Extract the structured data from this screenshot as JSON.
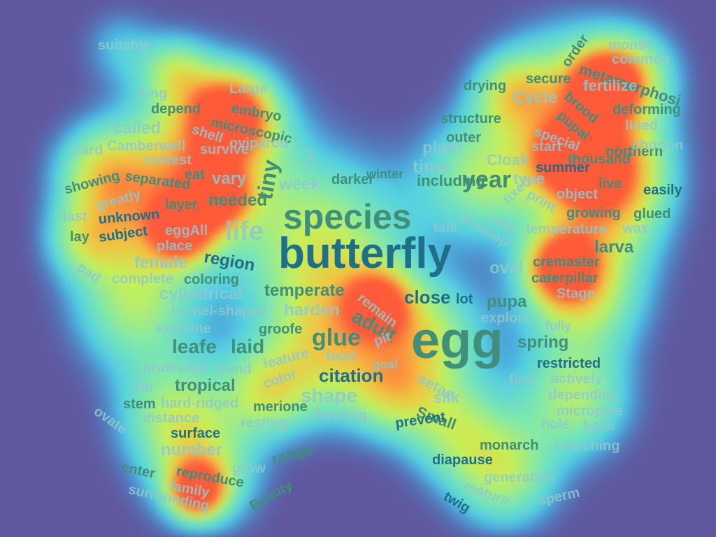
{
  "palette": {
    "background": "#5f5aa0",
    "heat_low": "#45c8f5",
    "heat_mid": "#b8f070",
    "heat_high": "#ff5a3a",
    "text_dark": "#1f6e8a",
    "text_mid": "#3f8f7a",
    "text_light": "#8ec9ce"
  },
  "words": [
    {
      "id": "butterfly",
      "text": "butterfly",
      "color": "text_dark",
      "heat": 0.15
    },
    {
      "id": "species",
      "text": "species",
      "color": "text_mid",
      "heat": 0.35
    },
    {
      "id": "egg",
      "text": "egg",
      "color": "text_mid",
      "heat": 0.5
    },
    {
      "id": "life",
      "text": "life",
      "color": "text_light",
      "heat": 0.2
    },
    {
      "id": "tiny",
      "text": "tiny",
      "color": "text_mid",
      "heat": 0.75
    },
    {
      "id": "year",
      "text": "year",
      "color": "text_mid",
      "heat": 0.4
    },
    {
      "id": "glue",
      "text": "glue",
      "color": "text_mid",
      "heat": 0.55
    },
    {
      "id": "adult",
      "text": "adult",
      "color": "text_mid",
      "heat": 0.7
    },
    {
      "id": "leafe",
      "text": "leafe",
      "color": "text_mid",
      "heat": 0.7
    },
    {
      "id": "laid",
      "text": "laid",
      "color": "text_mid",
      "heat": 0.6
    },
    {
      "id": "citation",
      "text": "citation",
      "color": "text_dark",
      "heat": 0.5
    },
    {
      "id": "shape",
      "text": "shape",
      "color": "text_light",
      "heat": 0.45
    },
    {
      "id": "region",
      "text": "region",
      "color": "text_dark",
      "heat": 0.55
    },
    {
      "id": "needed",
      "text": "needed",
      "color": "text_mid",
      "heat": 0.85
    },
    {
      "id": "vary",
      "text": "vary",
      "color": "text_light",
      "heat": 0.5
    },
    {
      "id": "week",
      "text": "week",
      "color": "text_light",
      "heat": 0.45
    },
    {
      "id": "darker",
      "text": "darker",
      "color": "text_mid",
      "heat": 0.45
    },
    {
      "id": "winter",
      "text": "winter",
      "color": "text_mid",
      "heat": 0.5
    },
    {
      "id": "including",
      "text": "including",
      "color": "text_mid",
      "heat": 0.5
    },
    {
      "id": "time",
      "text": "time",
      "color": "text_light",
      "heat": 0.5
    },
    {
      "id": "plant",
      "text": "plant",
      "color": "text_light",
      "heat": 0.5
    },
    {
      "id": "type",
      "text": "type",
      "color": "text_light",
      "heat": 0.55
    },
    {
      "id": "cloak",
      "text": "Cloak",
      "color": "text_light",
      "heat": 0.5
    },
    {
      "id": "outer",
      "text": "outer",
      "color": "text_mid",
      "heat": 0.55
    },
    {
      "id": "structure",
      "text": "structure",
      "color": "text_mid",
      "heat": 0.5
    },
    {
      "id": "drying",
      "text": "drying",
      "color": "text_mid",
      "heat": 0.3
    },
    {
      "id": "cycle",
      "text": "Cycle",
      "color": "text_light",
      "heat": 0.35
    },
    {
      "id": "secure",
      "text": "secure",
      "color": "text_mid",
      "heat": 0.4
    },
    {
      "id": "order",
      "text": "order",
      "color": "text_mid",
      "heat": 0.6
    },
    {
      "id": "month",
      "text": "month",
      "color": "text_light",
      "heat": 0.3
    },
    {
      "id": "common",
      "text": "common",
      "color": "text_light",
      "heat": 0.6
    },
    {
      "id": "metamorphosi",
      "text": "metamorphosi",
      "color": "text_mid",
      "heat": 0.75
    },
    {
      "id": "fertilize",
      "text": "fertilize",
      "color": "text_light",
      "heat": 0.85
    },
    {
      "id": "brood",
      "text": "brood",
      "color": "text_mid",
      "heat": 0.75
    },
    {
      "id": "deforming",
      "text": "deforming",
      "color": "text_mid",
      "heat": 0.6
    },
    {
      "id": "pupal",
      "text": "pupal",
      "color": "text_mid",
      "heat": 0.75
    },
    {
      "id": "lined",
      "text": "lined",
      "color": "text_light",
      "heat": 0.55
    },
    {
      "id": "special",
      "text": "special",
      "color": "text_light",
      "heat": 0.55
    },
    {
      "id": "start",
      "text": "start",
      "color": "text_light",
      "heat": 0.5
    },
    {
      "id": "northern",
      "text": "northern",
      "color": "text_mid",
      "heat": 0.55
    },
    {
      "id": "chorion",
      "text": "chorion",
      "color": "text_light",
      "heat": 0.45
    },
    {
      "id": "thousand",
      "text": "thousand",
      "color": "text_mid",
      "heat": 0.9
    },
    {
      "id": "summer",
      "text": "summer",
      "color": "text_dark",
      "heat": 0.6
    },
    {
      "id": "live",
      "text": "live",
      "color": "text_mid",
      "heat": 0.7
    },
    {
      "id": "object",
      "text": "object",
      "color": "text_light",
      "heat": 0.5
    },
    {
      "id": "easily",
      "text": "easily",
      "color": "text_dark",
      "heat": 0.4
    },
    {
      "id": "print",
      "text": "print",
      "color": "text_light",
      "heat": 0.6
    },
    {
      "id": "growing",
      "text": "growing",
      "color": "text_mid",
      "heat": 0.85
    },
    {
      "id": "glued",
      "text": "glued",
      "color": "text_mid",
      "heat": 0.6
    },
    {
      "id": "fixed",
      "text": "fixed",
      "color": "text_light",
      "heat": 0.65
    },
    {
      "id": "size",
      "text": "size",
      "color": "text_light",
      "heat": 0.85
    },
    {
      "id": "develop",
      "text": "develop",
      "color": "text_light",
      "heat": 0.55
    },
    {
      "id": "temperature",
      "text": "temperature",
      "color": "text_light",
      "heat": 0.75
    },
    {
      "id": "wax",
      "text": "wax",
      "color": "text_light",
      "heat": 0.7
    },
    {
      "id": "talk",
      "text": "talk",
      "color": "text_light",
      "heat": 0.4
    },
    {
      "id": "larva",
      "text": "larva",
      "color": "text_mid",
      "heat": 0.55
    },
    {
      "id": "oval",
      "text": "oval",
      "color": "text_light",
      "heat": 0.5
    },
    {
      "id": "cremaster",
      "text": "cremaster",
      "color": "text_mid",
      "heat": 0.9
    },
    {
      "id": "caterpillar",
      "text": "caterpillar",
      "color": "text_mid",
      "heat": 0.85
    },
    {
      "id": "stage",
      "text": "Stage",
      "color": "text_light",
      "heat": 0.8
    },
    {
      "id": "pupa",
      "text": "pupa",
      "color": "text_mid",
      "heat": 0.55
    },
    {
      "id": "explore",
      "text": "explore",
      "color": "text_light",
      "heat": 0.55
    },
    {
      "id": "fully",
      "text": "fully",
      "color": "text_light",
      "heat": 0.45
    },
    {
      "id": "spring",
      "text": "spring",
      "color": "text_mid",
      "heat": 0.6
    },
    {
      "id": "restricted",
      "text": "restricted",
      "color": "text_dark",
      "heat": 0.55
    },
    {
      "id": "fine",
      "text": "fine",
      "color": "text_light",
      "heat": 0.35
    },
    {
      "id": "actively",
      "text": "actively",
      "color": "text_light",
      "heat": 0.5
    },
    {
      "id": "depending",
      "text": "depending",
      "color": "text_light",
      "heat": 0.55
    },
    {
      "id": "micropyle",
      "text": "micropyle",
      "color": "text_light",
      "heat": 0.6
    },
    {
      "id": "hole",
      "text": "hole",
      "color": "text_light",
      "heat": 0.5
    },
    {
      "id": "base",
      "text": "base",
      "color": "text_light",
      "heat": 0.55
    },
    {
      "id": "searching",
      "text": "searching",
      "color": "text_light",
      "heat": 0.45
    },
    {
      "id": "monarch",
      "text": "monarch",
      "color": "text_mid",
      "heat": 0.55
    },
    {
      "id": "diapause",
      "text": "diapause",
      "color": "text_dark",
      "heat": 0.45
    },
    {
      "id": "generation",
      "text": "generation",
      "color": "text_light",
      "heat": 0.75
    },
    {
      "id": "mature",
      "text": "mature",
      "color": "text_light",
      "heat": 0.55
    },
    {
      "id": "twig",
      "text": "twig",
      "color": "text_dark",
      "heat": 0.4
    },
    {
      "id": "sperm",
      "text": "sperm",
      "color": "text_light",
      "heat": 0.4
    },
    {
      "id": "close",
      "text": "close",
      "color": "text_dark",
      "heat": 0.5
    },
    {
      "id": "lot",
      "text": "lot",
      "color": "text_dark",
      "heat": 0.5
    },
    {
      "id": "remain",
      "text": "remain",
      "color": "text_light",
      "heat": 0.75
    },
    {
      "id": "pit",
      "text": "pit",
      "color": "text_light",
      "heat": 0.6
    },
    {
      "id": "goal",
      "text": "goal",
      "color": "text_light",
      "heat": 0.5
    },
    {
      "id": "setae",
      "text": "setae",
      "color": "text_light",
      "heat": 0.6
    },
    {
      "id": "silk",
      "text": "silk",
      "color": "text_light",
      "heat": 0.75
    },
    {
      "id": "small",
      "text": "Small",
      "color": "text_mid",
      "heat": 0.8
    },
    {
      "id": "prevent",
      "text": "prevent",
      "color": "text_dark",
      "heat": 0.5
    },
    {
      "id": "forming",
      "text": "forming",
      "color": "text_light",
      "heat": 0.45
    },
    {
      "id": "temperate",
      "text": "temperate",
      "color": "text_mid",
      "heat": 0.5
    },
    {
      "id": "harden",
      "text": "harden",
      "color": "text_light",
      "heat": 0.45
    },
    {
      "id": "groofe",
      "text": "groofe",
      "color": "text_mid",
      "heat": 0.55
    },
    {
      "id": "food",
      "text": "food",
      "color": "text_light",
      "heat": 0.65
    },
    {
      "id": "feature",
      "text": "feature",
      "color": "text_light",
      "heat": 0.5
    },
    {
      "id": "color",
      "text": "color",
      "color": "text_light",
      "heat": 0.5
    },
    {
      "id": "merione",
      "text": "merione",
      "color": "text_mid",
      "heat": 0.7
    },
    {
      "id": "resting",
      "text": "resting",
      "color": "text_light",
      "heat": 0.5
    },
    {
      "id": "trend",
      "text": "trend",
      "color": "text_light",
      "heat": 0.6
    },
    {
      "id": "long",
      "text": "long",
      "color": "text_light",
      "heat": 0.4
    },
    {
      "id": "large",
      "text": "Large",
      "color": "text_light",
      "heat": 0.4
    },
    {
      "id": "depend",
      "text": "depend",
      "color": "text_mid",
      "heat": 0.6
    },
    {
      "id": "embryo",
      "text": "embryo",
      "color": "text_mid",
      "heat": 0.8
    },
    {
      "id": "microscopic",
      "text": "microscopic",
      "color": "text_mid",
      "heat": 0.75
    },
    {
      "id": "called",
      "text": "called",
      "color": "text_light",
      "heat": 0.55
    },
    {
      "id": "shell",
      "text": "shell",
      "color": "text_light",
      "heat": 0.8
    },
    {
      "id": "oviparou",
      "text": "oviparou",
      "color": "text_light",
      "heat": 0.75
    },
    {
      "id": "leaf",
      "text": "leaf",
      "color": "text_light",
      "heat": 0.6
    },
    {
      "id": "hard",
      "text": "hard",
      "color": "text_light",
      "heat": 0.45
    },
    {
      "id": "camberwell",
      "text": "Camberwell",
      "color": "text_light",
      "heat": 0.65
    },
    {
      "id": "survive",
      "text": "survive",
      "color": "text_light",
      "heat": 0.55
    },
    {
      "id": "coolest",
      "text": "coolest",
      "color": "text_light",
      "heat": 0.55
    },
    {
      "id": "showing",
      "text": "showing",
      "color": "text_mid",
      "heat": 0.45
    },
    {
      "id": "separated",
      "text": "separated",
      "color": "text_mid",
      "heat": 0.6
    },
    {
      "id": "eat",
      "text": "eat",
      "color": "text_mid",
      "heat": 0.75
    },
    {
      "id": "layer",
      "text": "layer",
      "color": "text_mid",
      "heat": 0.6
    },
    {
      "id": "last",
      "text": "last",
      "color": "text_light",
      "heat": 0.35
    },
    {
      "id": "greatly",
      "text": "greatly",
      "color": "text_light",
      "heat": 0.45
    },
    {
      "id": "unknown",
      "text": "unknown",
      "color": "text_dark",
      "heat": 0.5
    },
    {
      "id": "eggall",
      "text": "eggAll",
      "color": "text_light",
      "heat": 0.85
    },
    {
      "id": "lay",
      "text": "lay",
      "color": "text_mid",
      "heat": 0.4
    },
    {
      "id": "subject",
      "text": "subject",
      "color": "text_dark",
      "heat": 0.5
    },
    {
      "id": "place",
      "text": "place",
      "color": "text_light",
      "heat": 0.6
    },
    {
      "id": "pad",
      "text": "pad",
      "color": "text_light",
      "heat": 0.4
    },
    {
      "id": "female",
      "text": "female",
      "color": "text_light",
      "heat": 0.5
    },
    {
      "id": "complete",
      "text": "complete",
      "color": "text_light",
      "heat": 0.5
    },
    {
      "id": "coloring",
      "text": "coloring",
      "color": "text_mid",
      "heat": 0.65
    },
    {
      "id": "cylindrical",
      "text": "cylindrical",
      "color": "text_light",
      "heat": 0.55
    },
    {
      "id": "funnel-shaped",
      "text": "funnel-shaped",
      "color": "text_light",
      "heat": 0.55
    },
    {
      "id": "examine",
      "text": "examine",
      "color": "text_light",
      "heat": 0.75
    },
    {
      "id": "protected",
      "text": "protected",
      "color": "text_light",
      "heat": 0.6
    },
    {
      "id": "tropical",
      "text": "tropical",
      "color": "text_mid",
      "heat": 0.55
    },
    {
      "id": "rib",
      "text": "rib",
      "color": "text_light",
      "heat": 0.45
    },
    {
      "id": "stem",
      "text": "stem",
      "color": "text_mid",
      "heat": 0.5
    },
    {
      "id": "hard-ridged",
      "text": "hard-ridged",
      "color": "text_light",
      "heat": 0.6
    },
    {
      "id": "ovate",
      "text": "ovate",
      "color": "text_light",
      "heat": 0.4
    },
    {
      "id": "instance",
      "text": "instance",
      "color": "text_light",
      "heat": 0.55
    },
    {
      "id": "surface",
      "text": "surface",
      "color": "text_dark",
      "heat": 0.45
    },
    {
      "id": "number",
      "text": "number",
      "color": "text_light",
      "heat": 0.45
    },
    {
      "id": "range",
      "text": "range",
      "color": "text_mid",
      "heat": 0.55
    },
    {
      "id": "grow",
      "text": "grow",
      "color": "text_light",
      "heat": 0.55
    },
    {
      "id": "enter",
      "text": "enter",
      "color": "text_mid",
      "heat": 0.5
    },
    {
      "id": "reproduce",
      "text": "reproduce",
      "color": "text_mid",
      "heat": 0.75
    },
    {
      "id": "family",
      "text": "family",
      "color": "text_light",
      "heat": 0.95
    },
    {
      "id": "surrounding",
      "text": "surrounding",
      "color": "text_light",
      "heat": 0.5
    },
    {
      "id": "beauty",
      "text": "Beauty",
      "color": "text_mid",
      "heat": 0.5
    },
    {
      "id": "suitable",
      "text": "suitable",
      "color": "text_light",
      "heat": 0.3
    }
  ]
}
